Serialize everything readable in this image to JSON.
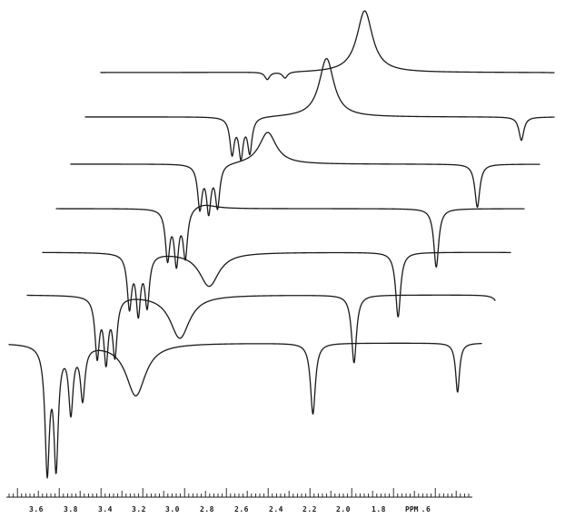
{
  "chart_data": {
    "type": "line",
    "subtype": "stacked-nmr-spectra",
    "title": "",
    "xlabel": "PPM",
    "ylabel": "",
    "x_unit_label": "PPM",
    "xlim": [
      3.72,
      1.58
    ],
    "x_reversed": true,
    "grid": false,
    "legend": "none",
    "x_ticks": [
      3.6,
      3.5,
      3.4,
      3.3,
      3.2,
      3.1,
      3.0,
      2.9,
      2.8,
      2.7,
      2.6,
      2.5,
      2.4,
      2.3,
      2.2,
      2.1,
      2.0,
      1.9,
      1.8,
      1.7,
      1.6
    ],
    "x_tick_labels": [
      "3.6",
      "3.8",
      "3.4",
      "3.2",
      "3.0",
      "2.8",
      "2.6",
      "2.4",
      "2.2",
      "2.0",
      "1.8",
      ".6"
    ],
    "spectra": [
      {
        "peaks": [
          {
            "ppm": 3.25,
            "height": 0.12,
            "width": 0.01
          },
          {
            "ppm": 3.19,
            "height": 0.1,
            "width": 0.01
          },
          {
            "ppm": 2.92,
            "height": -1.0,
            "width": 0.032
          },
          {
            "ppm": 2.22,
            "height": 0.12,
            "width": 0.012
          },
          {
            "ppm": 1.71,
            "height": 0.15,
            "width": 0.008
          }
        ]
      },
      {
        "peaks": [
          {
            "ppm": 3.32,
            "height": 0.58,
            "width": 0.009
          },
          {
            "ppm": 3.29,
            "height": 0.62,
            "width": 0.009
          },
          {
            "ppm": 3.26,
            "height": 0.56,
            "width": 0.009
          },
          {
            "ppm": 3.0,
            "height": -0.95,
            "width": 0.03
          },
          {
            "ppm": 2.34,
            "height": 0.38,
            "width": 0.01
          },
          {
            "ppm": 1.83,
            "height": 0.45,
            "width": 0.008
          }
        ]
      },
      {
        "peaks": [
          {
            "ppm": 3.38,
            "height": 0.7,
            "width": 0.009
          },
          {
            "ppm": 3.35,
            "height": 0.74,
            "width": 0.009
          },
          {
            "ppm": 3.32,
            "height": 0.68,
            "width": 0.009
          },
          {
            "ppm": 3.15,
            "height": -0.52,
            "width": 0.035
          },
          {
            "ppm": 2.44,
            "height": 0.7,
            "width": 0.01
          },
          {
            "ppm": 1.93,
            "height": 0.6,
            "width": 0.008
          }
        ]
      },
      {
        "peaks": [
          {
            "ppm": 3.44,
            "height": 0.8,
            "width": 0.009
          },
          {
            "ppm": 3.41,
            "height": 0.86,
            "width": 0.009
          },
          {
            "ppm": 3.38,
            "height": 0.78,
            "width": 0.009
          },
          {
            "ppm": 3.32,
            "height": -0.08,
            "width": 0.05
          },
          {
            "ppm": 2.53,
            "height": 0.95,
            "width": 0.01
          },
          {
            "ppm": 2.03,
            "height": 0.72,
            "width": 0.008
          }
        ]
      },
      {
        "peaks": [
          {
            "ppm": 3.52,
            "height": 0.85,
            "width": 0.009
          },
          {
            "ppm": 3.49,
            "height": 0.92,
            "width": 0.009
          },
          {
            "ppm": 3.46,
            "height": 0.82,
            "width": 0.009
          },
          {
            "ppm": 3.25,
            "height": 0.55,
            "width": 0.04
          },
          {
            "ppm": 2.61,
            "height": 1.05,
            "width": 0.01
          },
          {
            "ppm": 2.12,
            "height": 0.75,
            "width": 0.008
          }
        ]
      },
      {
        "peaks": [
          {
            "ppm": 3.58,
            "height": 0.95,
            "width": 0.009
          },
          {
            "ppm": 3.55,
            "height": 1.0,
            "width": 0.009
          },
          {
            "ppm": 3.52,
            "height": 0.92,
            "width": 0.009
          },
          {
            "ppm": 3.3,
            "height": 0.7,
            "width": 0.04
          },
          {
            "ppm": 2.71,
            "height": 1.1,
            "width": 0.01
          },
          {
            "ppm": 2.21,
            "height": 0.78,
            "width": 0.008
          }
        ]
      },
      {
        "peaks": [
          {
            "ppm": 3.7,
            "height": 2.0,
            "width": 0.009
          },
          {
            "ppm": 3.67,
            "height": 1.9,
            "width": 0.009
          },
          {
            "ppm": 3.62,
            "height": 1.05,
            "width": 0.009
          },
          {
            "ppm": 3.58,
            "height": 0.85,
            "width": 0.009
          },
          {
            "ppm": 3.4,
            "height": 0.85,
            "width": 0.04
          },
          {
            "ppm": 2.8,
            "height": 1.15,
            "width": 0.01
          },
          {
            "ppm": 2.31,
            "height": 0.8,
            "width": 0.008
          }
        ]
      }
    ]
  }
}
